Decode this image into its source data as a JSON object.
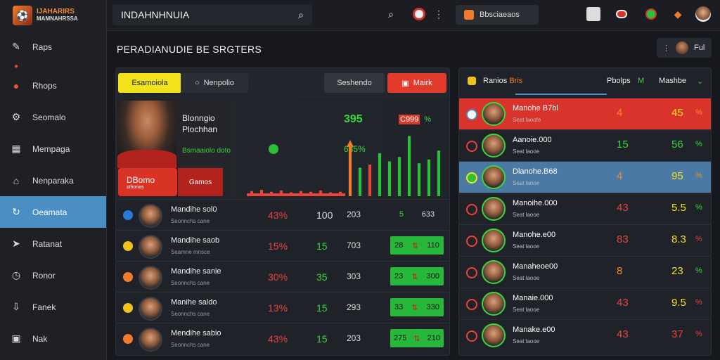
{
  "app": {
    "logo_line1": "IJAHARIRS",
    "logo_line2": "MAMNAHRSSA"
  },
  "search": {
    "value": "INDAHNHNUIA"
  },
  "topbar": {
    "pill_label": "Bbsciaeaos"
  },
  "sidebar": {
    "items": [
      {
        "label": "Raps",
        "icon": "pin-icon"
      },
      {
        "label": "",
        "icon": "dot-icon"
      },
      {
        "label": "Rhops",
        "icon": "dot-icon"
      },
      {
        "label": "Seomalo",
        "icon": "gear-icon"
      },
      {
        "label": "Mempaga",
        "icon": "grid-icon"
      },
      {
        "label": "Nenparaka",
        "icon": "home-icon"
      },
      {
        "label": "Oeamata",
        "icon": "refresh-icon"
      },
      {
        "label": "Ratanat",
        "icon": "send-icon"
      },
      {
        "label": "Ronor",
        "icon": "clock-icon"
      },
      {
        "label": "Fanek",
        "icon": "download-icon"
      },
      {
        "label": "Nak",
        "icon": "image-icon"
      }
    ]
  },
  "main": {
    "title": "PERADIANUDIE BE SRGTERS",
    "user_label": "Ful"
  },
  "left_panel": {
    "tabs": {
      "yellow": "Esamoiola",
      "dark": "Nenpolio",
      "dark2": "Seshendo",
      "red": "Mairk"
    },
    "hero": {
      "name1": "Blonngio",
      "name2": "Plochhan",
      "sub": "Bsmaaiolo doto",
      "num1": "395",
      "num2": "635%",
      "tag_box": "C999",
      "tag_pct": "%",
      "btn_red_line1": "DBomo",
      "btn_red_line2": "sthonas",
      "btn_red2": "Gamos"
    },
    "rows": [
      {
        "name": "Mandihe sol0",
        "sub": "Seonnchs cane",
        "c1": "43%",
        "c2": "100",
        "c3": "203",
        "c4a": "5",
        "c4b": "633",
        "style": "plain",
        "badge": "#2b7ad8"
      },
      {
        "name": "Mandihe saob",
        "sub": "Seamne mnsce",
        "c1": "15%",
        "c2": "15",
        "c3": "703",
        "c4a": "28",
        "c4b": "110",
        "style": "pill",
        "badge": "#f2c21a"
      },
      {
        "name": "Mandihe sanie",
        "sub": "Seonnchs cane",
        "c1": "30%",
        "c2": "35",
        "c3": "303",
        "c4a": "23",
        "c4b": "300",
        "style": "pill",
        "badge": "#f07b2b"
      },
      {
        "name": "Manihe saldo",
        "sub": "Seonnchs cane",
        "c1": "13%",
        "c2": "15",
        "c3": "293",
        "c4a": "33",
        "c4b": "330",
        "style": "pill",
        "badge": "#f2c21a"
      },
      {
        "name": "Mendihe sabio",
        "sub": "Seonnchs cane",
        "c1": "43%",
        "c2": "15",
        "c3": "203",
        "c4a": "275",
        "c4b": "210",
        "style": "pill",
        "badge": "#f07b2b"
      }
    ],
    "chart_bars": [
      {
        "h": 0.08,
        "c": "#e8443a"
      },
      {
        "h": 0.1,
        "c": "#e8443a"
      },
      {
        "h": 0.07,
        "c": "#e8443a"
      },
      {
        "h": 0.09,
        "c": "#e8443a"
      },
      {
        "h": 0.06,
        "c": "#e8443a"
      },
      {
        "h": 0.08,
        "c": "#e8443a"
      },
      {
        "h": 0.07,
        "c": "#e8443a"
      },
      {
        "h": 0.09,
        "c": "#e8443a"
      },
      {
        "h": 0.06,
        "c": "#e8443a"
      },
      {
        "h": 0.07,
        "c": "#e8443a"
      },
      {
        "h": 0.8,
        "c": "#f07b2b"
      },
      {
        "h": 0.45,
        "c": "#2bbf3a"
      },
      {
        "h": 0.5,
        "c": "#e8443a"
      },
      {
        "h": 0.68,
        "c": "#2bbf3a"
      },
      {
        "h": 0.55,
        "c": "#2bbf3a"
      },
      {
        "h": 0.62,
        "c": "#2bbf3a"
      },
      {
        "h": 0.95,
        "c": "#2bbf3a"
      },
      {
        "h": 0.52,
        "c": "#2bbf3a"
      },
      {
        "h": 0.58,
        "c": "#2bbf3a"
      },
      {
        "h": 0.72,
        "c": "#2bbf3a"
      }
    ]
  },
  "right_panel": {
    "head": {
      "t1": "Ranios",
      "t1_accent": "Bris",
      "t2": "Pbolps",
      "t3": "M",
      "t4": "Mashbe"
    },
    "rows": [
      {
        "name": "Manohe B7bl",
        "sub": "Seat laoofe",
        "v1": "4",
        "v1c": "orange",
        "v2": "45",
        "v2c": "yellow",
        "v3": "%",
        "v3c": "orange",
        "bg": "red"
      },
      {
        "name": "Aanoie.000",
        "sub": "Seat laooe",
        "v1": "15",
        "v1c": "green",
        "v2": "56",
        "v2c": "green",
        "v3": "%",
        "v3c": "green",
        "bg": "none"
      },
      {
        "name": "Dlanohe.B68",
        "sub": "Seat laooe",
        "v1": "4",
        "v1c": "orange",
        "v2": "95",
        "v2c": "yellow",
        "v3": "%",
        "v3c": "orange",
        "bg": "blue"
      },
      {
        "name": "Manoihe.000",
        "sub": "Seat laooe",
        "v1": "43",
        "v1c": "redt",
        "v2": "5.5",
        "v2c": "yellow",
        "v3": "%",
        "v3c": "green",
        "bg": "none"
      },
      {
        "name": "Manohe.e00",
        "sub": "Seat laooe",
        "v1": "83",
        "v1c": "redt",
        "v2": "8.3",
        "v2c": "yellow",
        "v3": "%",
        "v3c": "redt",
        "bg": "none"
      },
      {
        "name": "Manaheoe00",
        "sub": "Seat laooe",
        "v1": "8",
        "v1c": "orange",
        "v2": "23",
        "v2c": "yellow",
        "v3": "%",
        "v3c": "green",
        "bg": "none"
      },
      {
        "name": "Manaie.000",
        "sub": "Seat laooe",
        "v1": "43",
        "v1c": "redt",
        "v2": "9.5",
        "v2c": "yellow",
        "v3": "%",
        "v3c": "redt",
        "bg": "none"
      },
      {
        "name": "Manake.e00",
        "sub": "Seat laooe",
        "v1": "43",
        "v1c": "redt",
        "v2": "37",
        "v2c": "redt",
        "v3": "%",
        "v3c": "redt",
        "bg": "none"
      }
    ]
  }
}
